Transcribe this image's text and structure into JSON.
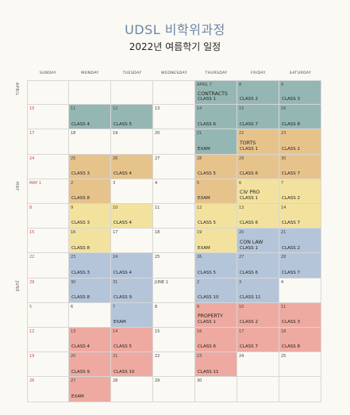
{
  "header": {
    "title": "UDSL 비학위과정",
    "subtitle": "2022년 여름학기 일정"
  },
  "days": [
    "SUNDAY",
    "MONDAY",
    "TUESDAY",
    "WEDNESDAY",
    "THURSDAY",
    "FRIDAY",
    "SATURDAY"
  ],
  "months": [
    "APRIL",
    "MAY",
    "JUNE"
  ],
  "colors": {
    "contracts": "#95b7b3",
    "torts": "#e7c38c",
    "civpro": "#f2e29e",
    "conlaw": "#b4c5d9",
    "property": "#eeaaa0",
    "blank": "#fbf9f4"
  },
  "weeks": [
    [
      {
        "d": "",
        "c": ""
      },
      {
        "d": "",
        "c": ""
      },
      {
        "d": "",
        "c": ""
      },
      {
        "d": "",
        "c": ""
      },
      {
        "d": "APRIL 7",
        "c": "contracts",
        "subject": "CONTRACTS",
        "label": "CLASS 1"
      },
      {
        "d": "8",
        "c": "contracts",
        "label": "CLASS 2"
      },
      {
        "d": "9",
        "c": "contracts",
        "label": "CLASS 3"
      }
    ],
    [
      {
        "d": "10",
        "c": ""
      },
      {
        "d": "11",
        "c": "contracts",
        "label": "CLASS 4"
      },
      {
        "d": "12",
        "c": "contracts",
        "label": "CLASS 5"
      },
      {
        "d": "13",
        "c": ""
      },
      {
        "d": "14",
        "c": "contracts",
        "label": "CLASS 6"
      },
      {
        "d": "15",
        "c": "contracts",
        "label": "CLASS 7"
      },
      {
        "d": "16",
        "c": "contracts",
        "label": "CLASS 8"
      }
    ],
    [
      {
        "d": "17",
        "c": ""
      },
      {
        "d": "18",
        "c": ""
      },
      {
        "d": "19",
        "c": ""
      },
      {
        "d": "20",
        "c": ""
      },
      {
        "d": "21",
        "c": "contracts",
        "label": "EXAM"
      },
      {
        "d": "22",
        "c": "torts",
        "subject": "TORTS",
        "label": "CLASS 1"
      },
      {
        "d": "23",
        "c": "torts",
        "label": "CLASS 2"
      }
    ],
    [
      {
        "d": "24",
        "c": ""
      },
      {
        "d": "25",
        "c": "torts",
        "label": "CLASS 3"
      },
      {
        "d": "26",
        "c": "torts",
        "label": "CLASS 4"
      },
      {
        "d": "27",
        "c": ""
      },
      {
        "d": "28",
        "c": "torts",
        "label": "CLASS 5"
      },
      {
        "d": "29",
        "c": "torts",
        "label": "CLASS 6"
      },
      {
        "d": "30",
        "c": "torts",
        "label": "CLASS 7"
      }
    ],
    [
      {
        "d": "MAY 1",
        "c": ""
      },
      {
        "d": "2",
        "c": "torts",
        "label": "CLASS 8"
      },
      {
        "d": "3",
        "c": ""
      },
      {
        "d": "4",
        "c": ""
      },
      {
        "d": "5",
        "c": "torts",
        "label": "EXAM"
      },
      {
        "d": "6",
        "c": "civpro",
        "subject": "CIV PRO",
        "label": "CLASS 1"
      },
      {
        "d": "7",
        "c": "civpro",
        "label": "CLASS 2"
      }
    ],
    [
      {
        "d": "8",
        "c": ""
      },
      {
        "d": "9",
        "c": "civpro",
        "label": "CLASS 3"
      },
      {
        "d": "10",
        "c": "civpro",
        "label": "CLASS 4"
      },
      {
        "d": "11",
        "c": ""
      },
      {
        "d": "12",
        "c": "civpro",
        "label": "CLASS 5"
      },
      {
        "d": "13",
        "c": "civpro",
        "label": "CLASS 6"
      },
      {
        "d": "14",
        "c": "civpro",
        "label": "CLASS 7"
      }
    ],
    [
      {
        "d": "15",
        "c": ""
      },
      {
        "d": "16",
        "c": "civpro",
        "label": "CLASS 8"
      },
      {
        "d": "17",
        "c": ""
      },
      {
        "d": "18",
        "c": ""
      },
      {
        "d": "19",
        "c": "civpro",
        "label": "EXAM"
      },
      {
        "d": "20",
        "c": "conlaw",
        "subject": "CON LAW",
        "label": "CLASS 1"
      },
      {
        "d": "21",
        "c": "conlaw",
        "label": "CLASS 2"
      }
    ],
    [
      {
        "d": "22",
        "c": ""
      },
      {
        "d": "23",
        "c": "conlaw",
        "label": "CLASS 3"
      },
      {
        "d": "24",
        "c": "conlaw",
        "label": "CLASS 4"
      },
      {
        "d": "25",
        "c": ""
      },
      {
        "d": "26",
        "c": "conlaw",
        "label": "CLASS 5"
      },
      {
        "d": "27",
        "c": "conlaw",
        "label": "CLASS 6"
      },
      {
        "d": "28",
        "c": "conlaw",
        "label": "CLASS 7"
      }
    ],
    [
      {
        "d": "29",
        "c": ""
      },
      {
        "d": "30",
        "c": "conlaw",
        "label": "CLASS 8"
      },
      {
        "d": "31",
        "c": "conlaw",
        "label": "CLASS 9"
      },
      {
        "d": "JUNE 1",
        "c": ""
      },
      {
        "d": "2",
        "c": "conlaw",
        "label": "CLASS 10"
      },
      {
        "d": "3",
        "c": "conlaw",
        "label": "CLASS 11"
      },
      {
        "d": "4",
        "c": ""
      }
    ],
    [
      {
        "d": "5",
        "c": ""
      },
      {
        "d": "6",
        "c": ""
      },
      {
        "d": "7",
        "c": "conlaw",
        "label": "EXAM"
      },
      {
        "d": "8",
        "c": ""
      },
      {
        "d": "9",
        "c": "property",
        "subject": "PROPERTY",
        "label": "CLASS 1"
      },
      {
        "d": "10",
        "c": "property",
        "label": "CLASS 2"
      },
      {
        "d": "11",
        "c": "property",
        "label": "CLASS 3"
      }
    ],
    [
      {
        "d": "12",
        "c": ""
      },
      {
        "d": "13",
        "c": "property",
        "label": "CLASS 4"
      },
      {
        "d": "14",
        "c": "property",
        "label": "CLASS 5"
      },
      {
        "d": "15",
        "c": ""
      },
      {
        "d": "16",
        "c": "property",
        "label": "CLASS 6"
      },
      {
        "d": "17",
        "c": "property",
        "label": "CLASS 7"
      },
      {
        "d": "18",
        "c": "property",
        "label": "CLASS 8"
      }
    ],
    [
      {
        "d": "19",
        "c": ""
      },
      {
        "d": "20",
        "c": "property",
        "label": "CLASS 9"
      },
      {
        "d": "21",
        "c": "property",
        "label": "CLASS 10"
      },
      {
        "d": "22",
        "c": ""
      },
      {
        "d": "23",
        "c": "property",
        "label": "CLASS 11"
      },
      {
        "d": "24",
        "c": ""
      },
      {
        "d": "25",
        "c": ""
      }
    ],
    [
      {
        "d": "26",
        "c": ""
      },
      {
        "d": "27",
        "c": "property",
        "label": "EXAM"
      },
      {
        "d": "28",
        "c": ""
      },
      {
        "d": "29",
        "c": ""
      },
      {
        "d": "30",
        "c": ""
      },
      {
        "d": "",
        "c": ""
      },
      {
        "d": "",
        "c": ""
      }
    ]
  ]
}
